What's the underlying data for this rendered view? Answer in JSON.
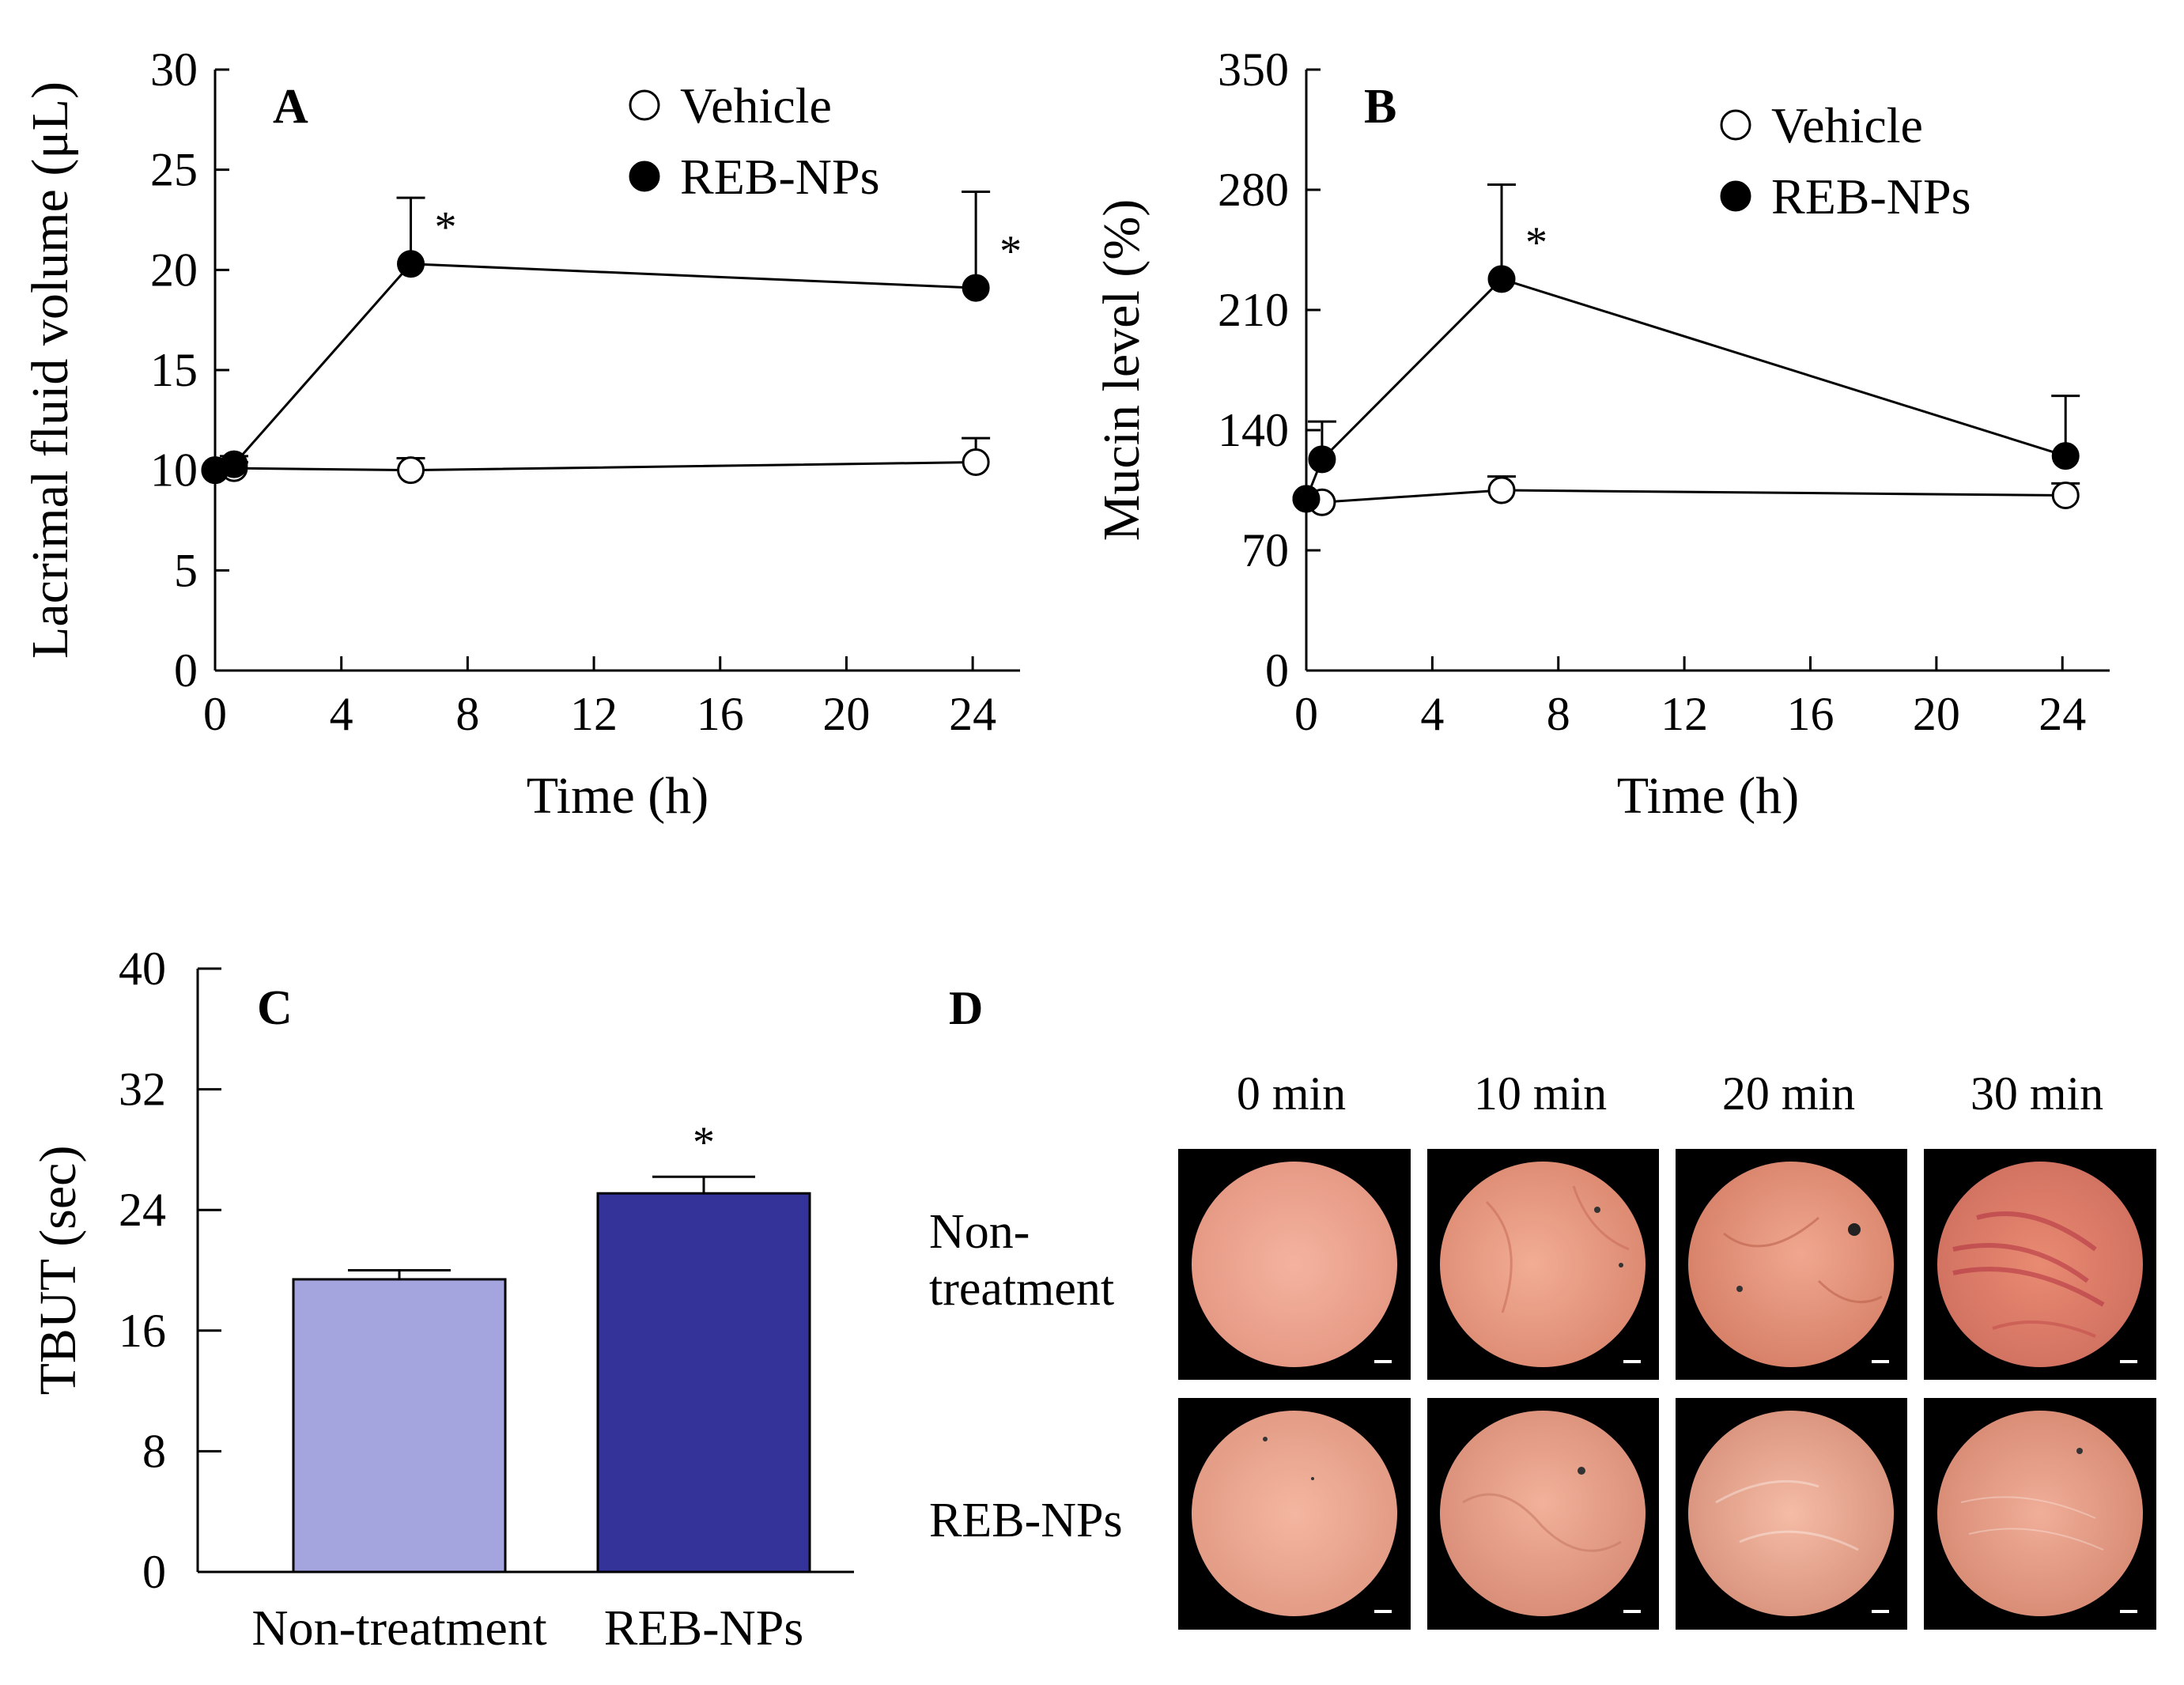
{
  "chart_data": [
    {
      "panel": "A",
      "type": "line",
      "xlabel": "Time (h)",
      "ylabel": "Lacrimal fluid volume (μL)",
      "xlim": [
        0,
        25.5
      ],
      "ylim": [
        0,
        30
      ],
      "xticks": [
        0,
        4,
        8,
        12,
        16,
        20,
        24
      ],
      "yticks": [
        0,
        5,
        10,
        15,
        20,
        25,
        30
      ],
      "legend_position": "top-right",
      "series": [
        {
          "name": "Vehicle",
          "marker": "open-circle",
          "x": [
            0,
            0.6,
            6.2,
            24.1
          ],
          "y": [
            10.0,
            10.1,
            10.0,
            10.4
          ],
          "err": [
            0,
            0.3,
            0.6,
            1.2
          ]
        },
        {
          "name": "REB-NPs",
          "marker": "filled-circle",
          "x": [
            0,
            0.6,
            6.2,
            24.1
          ],
          "y": [
            10.0,
            10.3,
            20.3,
            19.1
          ],
          "err": [
            0,
            0.4,
            3.3,
            4.8
          ]
        }
      ],
      "significance": [
        {
          "series": "REB-NPs",
          "x": 6.2,
          "label": "*"
        },
        {
          "series": "REB-NPs",
          "x": 24.1,
          "label": "*"
        }
      ]
    },
    {
      "panel": "B",
      "type": "line",
      "xlabel": "Time (h)",
      "ylabel": "Mucin level (%)",
      "xlim": [
        0,
        25.5
      ],
      "ylim": [
        0,
        350
      ],
      "xticks": [
        0,
        4,
        8,
        12,
        16,
        20,
        24
      ],
      "yticks": [
        0,
        70,
        140,
        210,
        280,
        350
      ],
      "legend_position": "top-right",
      "series": [
        {
          "name": "Vehicle",
          "marker": "open-circle",
          "x": [
            0,
            0.5,
            6.2,
            24.1
          ],
          "y": [
            100,
            98,
            105,
            102
          ],
          "err": [
            0,
            0,
            8,
            7
          ]
        },
        {
          "name": "REB-NPs",
          "marker": "filled-circle",
          "x": [
            0,
            0.5,
            6.2,
            24.1
          ],
          "y": [
            100,
            123,
            228,
            125
          ],
          "err": [
            0,
            22,
            55,
            35
          ]
        }
      ],
      "significance": [
        {
          "series": "REB-NPs",
          "x": 6.2,
          "label": "*"
        }
      ]
    },
    {
      "panel": "C",
      "type": "bar",
      "ylabel": "TBUT (sec)",
      "ylim": [
        0,
        40
      ],
      "yticks": [
        0,
        8,
        16,
        24,
        32,
        40
      ],
      "categories": [
        "Non-treatment",
        "REB-NPs"
      ],
      "values": [
        19.4,
        25.1
      ],
      "err": [
        0.6,
        1.1
      ],
      "colors": [
        "#a4a4de",
        "#33339a"
      ],
      "significance": [
        {
          "category": "REB-NPs",
          "label": "*"
        }
      ]
    },
    {
      "panel": "D",
      "type": "image-grid",
      "column_labels": [
        "0 min",
        "10 min",
        "20 min",
        "30 min"
      ],
      "row_labels": [
        "Non-\ntreatment",
        "REB-NPs"
      ]
    }
  ]
}
